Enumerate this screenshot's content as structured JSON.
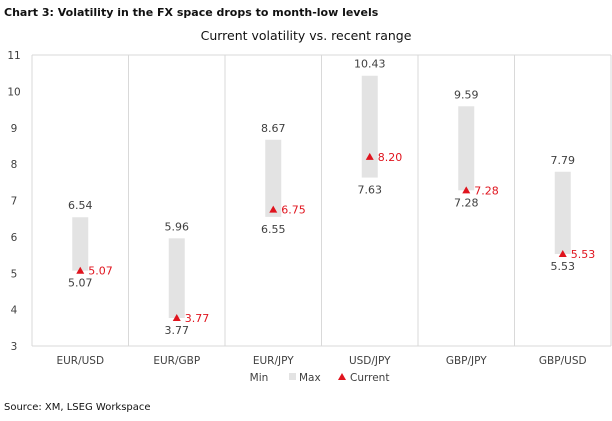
{
  "heading": "Chart 3: Volatility in the FX space drops to month-low levels",
  "source": "Source: XM, LSEG Workspace",
  "chart_data": {
    "type": "bar",
    "subtype": "floating-range-with-marker",
    "title": "Current volatility vs. recent range",
    "xlabel": "",
    "ylabel": "",
    "ylim": [
      3,
      11
    ],
    "yticks": [
      3,
      4,
      5,
      6,
      7,
      8,
      9,
      10,
      11
    ],
    "grid": "vertical-category-separators",
    "legend_position": "bottom",
    "legend": [
      "Min",
      "Max",
      "Current"
    ],
    "categories": [
      "EUR/USD",
      "EUR/GBP",
      "EUR/JPY",
      "USD/JPY",
      "GBP/JPY",
      "GBP/USD"
    ],
    "series": [
      {
        "name": "Min",
        "values": [
          5.07,
          3.77,
          6.55,
          7.63,
          7.28,
          5.53
        ]
      },
      {
        "name": "Max",
        "values": [
          6.54,
          5.96,
          8.67,
          10.43,
          9.59,
          7.79
        ]
      },
      {
        "name": "Current",
        "values": [
          5.07,
          3.77,
          6.75,
          8.2,
          7.28,
          5.53
        ]
      }
    ],
    "colors": {
      "range": "#e3e3e3",
      "current": "#e0141e",
      "labels": "#404040",
      "grid": "#d9d9d9"
    }
  }
}
